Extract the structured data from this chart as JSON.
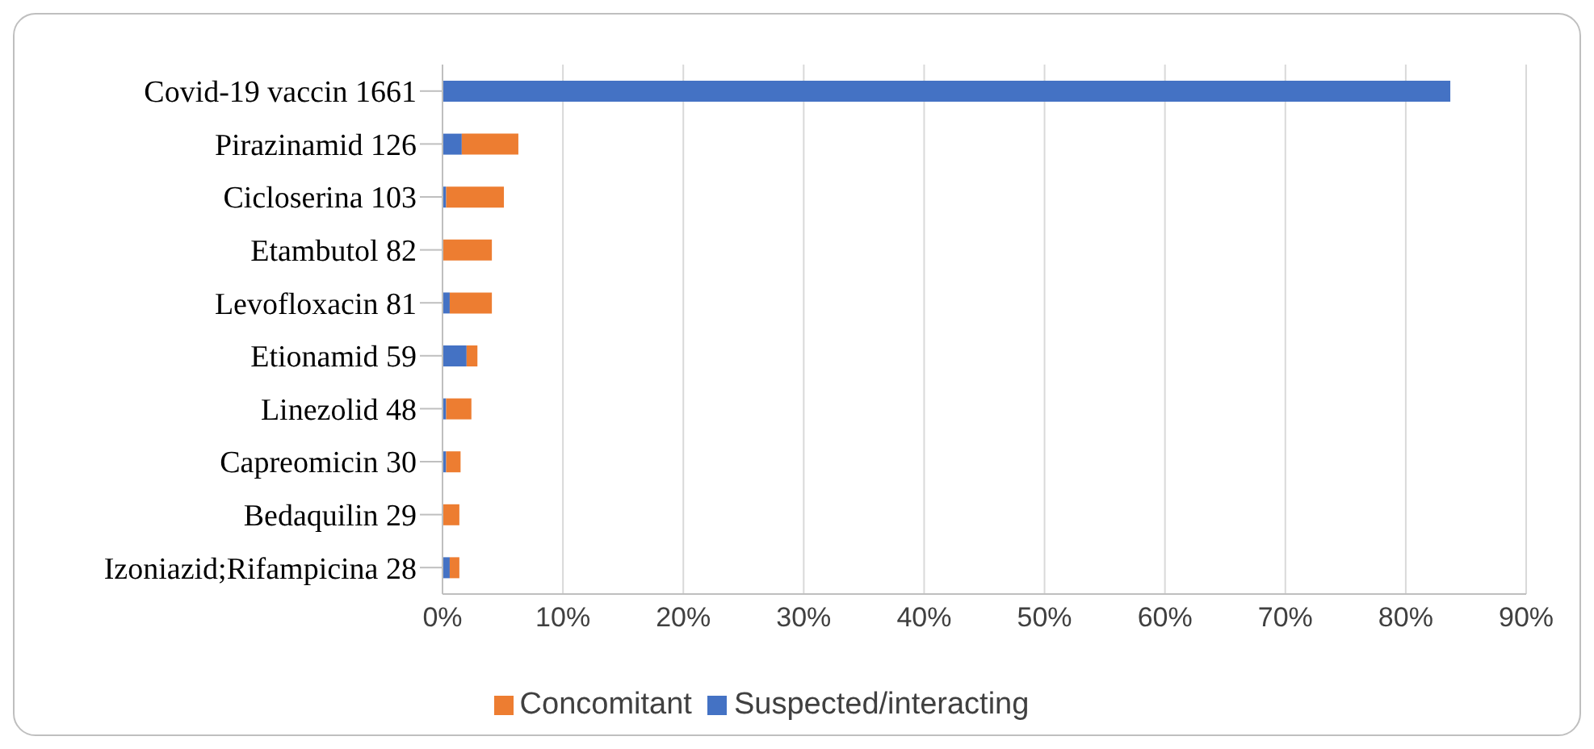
{
  "chart_data": {
    "type": "bar",
    "orientation": "horizontal",
    "stacked": true,
    "categories": [
      "Covid-19 vaccin  1661",
      "Pirazinamid  126",
      "Cicloserina  103",
      "Etambutol  82",
      "Levofloxacin  81",
      "Etionamid  59",
      "Linezolid  48",
      "Capreomicin  30",
      "Bedaquilin  29",
      "Izoniazid;Rifampicina  28"
    ],
    "series": [
      {
        "name": "Suspected/interacting",
        "color": "#4472c4",
        "values": [
          83.7,
          1.6,
          0.3,
          0,
          0.6,
          2.0,
          0.3,
          0.3,
          0,
          0.6
        ]
      },
      {
        "name": "Concomitant",
        "color": "#ed7d31",
        "values": [
          0,
          4.7,
          4.8,
          4.1,
          3.5,
          0.9,
          2.1,
          1.2,
          1.4,
          0.8
        ]
      }
    ],
    "xlim": [
      0,
      90
    ],
    "xticks": [
      {
        "value": 0,
        "label": "0%"
      },
      {
        "value": 10,
        "label": "10%"
      },
      {
        "value": 20,
        "label": "20%"
      },
      {
        "value": 30,
        "label": "30%"
      },
      {
        "value": 40,
        "label": "40%"
      },
      {
        "value": 50,
        "label": "50%"
      },
      {
        "value": 60,
        "label": "60%"
      },
      {
        "value": 70,
        "label": "70%"
      },
      {
        "value": 80,
        "label": "80%"
      },
      {
        "value": 90,
        "label": "90%"
      }
    ],
    "grid": "x",
    "legend": "bottom"
  }
}
